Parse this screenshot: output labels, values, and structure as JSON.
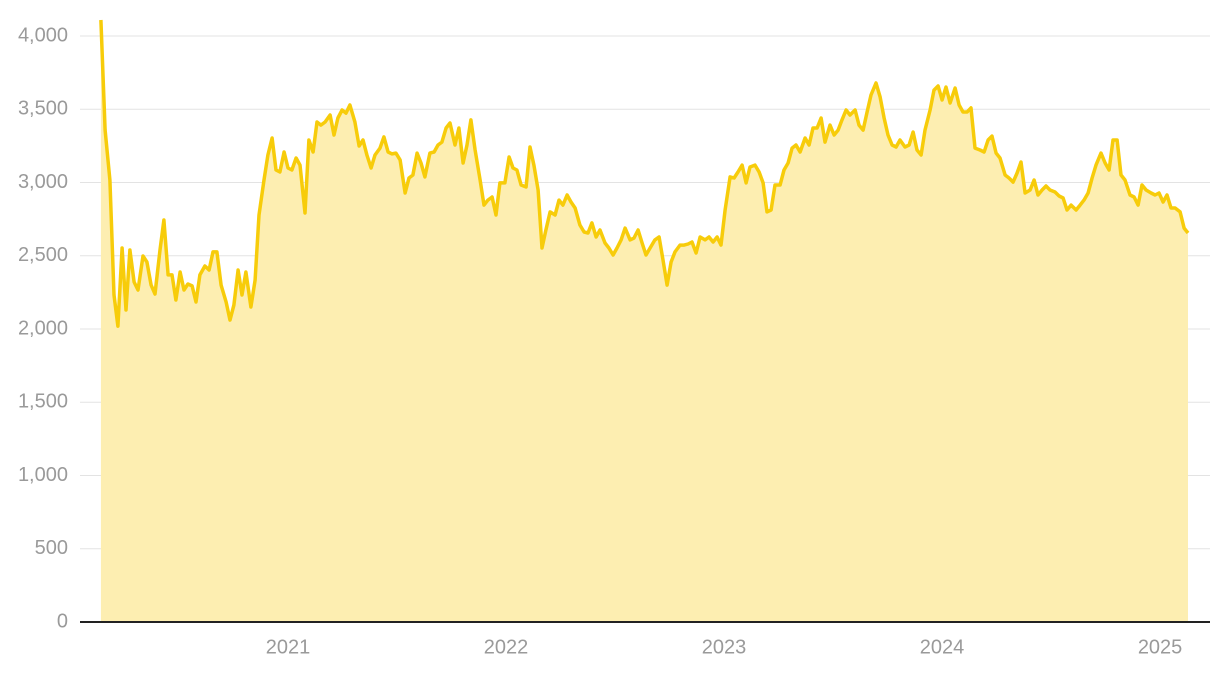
{
  "chart_data": {
    "type": "area",
    "x": [
      2020.142,
      2020.161,
      2020.183,
      2020.202,
      2020.22,
      2020.239,
      2020.257,
      2020.275,
      2020.294,
      2020.312,
      2020.335,
      2020.353,
      2020.372,
      2020.39,
      2020.413,
      2020.431,
      2020.45,
      2020.468,
      2020.486,
      2020.505,
      2020.523,
      2020.541,
      2020.56,
      2020.578,
      2020.596,
      2020.619,
      2020.638,
      2020.656,
      2020.674,
      2020.693,
      2020.716,
      2020.734,
      2020.752,
      2020.771,
      2020.789,
      2020.807,
      2020.83,
      2020.849,
      2020.867,
      2020.89,
      2020.908,
      2020.927,
      2020.945,
      2020.963,
      2020.982,
      2021.0,
      2021.018,
      2021.037,
      2021.055,
      2021.078,
      2021.096,
      2021.115,
      2021.133,
      2021.151,
      2021.17,
      2021.193,
      2021.211,
      2021.229,
      2021.248,
      2021.266,
      2021.284,
      2021.307,
      2021.326,
      2021.344,
      2021.362,
      2021.381,
      2021.399,
      2021.422,
      2021.44,
      2021.459,
      2021.477,
      2021.495,
      2021.514,
      2021.537,
      2021.555,
      2021.573,
      2021.592,
      2021.61,
      2021.628,
      2021.651,
      2021.67,
      2021.688,
      2021.706,
      2021.725,
      2021.743,
      2021.766,
      2021.784,
      2021.803,
      2021.821,
      2021.839,
      2021.858,
      2021.881,
      2021.899,
      2021.917,
      2021.936,
      2021.954,
      2021.972,
      2021.995,
      2022.014,
      2022.032,
      2022.05,
      2022.069,
      2022.092,
      2022.11,
      2022.128,
      2022.147,
      2022.165,
      2022.183,
      2022.202,
      2022.225,
      2022.243,
      2022.261,
      2022.28,
      2022.298,
      2022.317,
      2022.339,
      2022.358,
      2022.376,
      2022.394,
      2022.413,
      2022.431,
      2022.454,
      2022.472,
      2022.491,
      2022.509,
      2022.528,
      2022.546,
      2022.569,
      2022.587,
      2022.606,
      2022.624,
      2022.642,
      2022.661,
      2022.683,
      2022.702,
      2022.72,
      2022.739,
      2022.757,
      2022.775,
      2022.798,
      2022.817,
      2022.835,
      2022.853,
      2022.872,
      2022.89,
      2022.913,
      2022.931,
      2022.95,
      2022.968,
      2022.986,
      2023.005,
      2023.028,
      2023.046,
      2023.064,
      2023.083,
      2023.101,
      2023.119,
      2023.142,
      2023.161,
      2023.179,
      2023.197,
      2023.216,
      2023.234,
      2023.257,
      2023.275,
      2023.294,
      2023.312,
      2023.33,
      2023.349,
      2023.372,
      2023.39,
      2023.408,
      2023.427,
      2023.445,
      2023.463,
      2023.486,
      2023.505,
      2023.523,
      2023.541,
      2023.56,
      2023.578,
      2023.601,
      2023.619,
      2023.638,
      2023.656,
      2023.674,
      2023.697,
      2023.716,
      2023.734,
      2023.752,
      2023.771,
      2023.789,
      2023.807,
      2023.83,
      2023.849,
      2023.867,
      2023.885,
      2023.904,
      2023.922,
      2023.945,
      2023.963,
      2023.982,
      2024.0,
      2024.018,
      2024.037,
      2024.06,
      2024.078,
      2024.096,
      2024.115,
      2024.133,
      2024.151,
      2024.174,
      2024.193,
      2024.211,
      2024.229,
      2024.248,
      2024.266,
      2024.289,
      2024.307,
      2024.326,
      2024.344,
      2024.362,
      2024.381,
      2024.404,
      2024.422,
      2024.44,
      2024.459,
      2024.477,
      2024.495,
      2024.518,
      2024.537,
      2024.555,
      2024.573,
      2024.592,
      2024.615,
      2024.633,
      2024.651,
      2024.67,
      2024.688,
      2024.706,
      2024.729,
      2024.748,
      2024.766,
      2024.784,
      2024.803,
      2024.821,
      2024.839,
      2024.862,
      2024.881,
      2024.899,
      2024.917,
      2024.936,
      2024.959,
      2024.977,
      2024.995,
      2025.014,
      2025.032,
      2025.05,
      2025.069,
      2025.092,
      2025.11,
      2025.128
    ],
    "values": [
      4109,
      3358,
      3017,
      2232,
      2020,
      2553,
      2130,
      2539,
      2321,
      2266,
      2498,
      2457,
      2300,
      2239,
      2539,
      2744,
      2369,
      2369,
      2198,
      2389,
      2266,
      2307,
      2294,
      2184,
      2369,
      2430,
      2403,
      2526,
      2526,
      2300,
      2184,
      2061,
      2164,
      2403,
      2232,
      2389,
      2150,
      2334,
      2778,
      3017,
      3188,
      3304,
      3085,
      3072,
      3208,
      3099,
      3085,
      3167,
      3119,
      2792,
      3290,
      3208,
      3413,
      3392,
      3413,
      3461,
      3324,
      3440,
      3495,
      3474,
      3529,
      3413,
      3249,
      3290,
      3188,
      3099,
      3188,
      3235,
      3311,
      3208,
      3195,
      3201,
      3154,
      2928,
      3031,
      3051,
      3201,
      3133,
      3038,
      3201,
      3208,
      3256,
      3276,
      3372,
      3406,
      3256,
      3372,
      3133,
      3256,
      3427,
      3222,
      3017,
      2846,
      2880,
      2901,
      2778,
      2997,
      2997,
      3174,
      3099,
      3085,
      2983,
      2969,
      3242,
      3119,
      2949,
      2553,
      2676,
      2799,
      2778,
      2880,
      2846,
      2915,
      2867,
      2826,
      2710,
      2662,
      2655,
      2724,
      2628,
      2676,
      2587,
      2553,
      2505,
      2553,
      2608,
      2689,
      2608,
      2621,
      2676,
      2587,
      2505,
      2553,
      2608,
      2628,
      2471,
      2300,
      2457,
      2526,
      2573,
      2573,
      2580,
      2594,
      2519,
      2628,
      2608,
      2628,
      2594,
      2628,
      2573,
      2812,
      3038,
      3031,
      3072,
      3119,
      2997,
      3106,
      3119,
      3072,
      2997,
      2799,
      2812,
      2983,
      2983,
      3085,
      3133,
      3235,
      3256,
      3208,
      3304,
      3256,
      3372,
      3372,
      3440,
      3276,
      3392,
      3324,
      3358,
      3427,
      3495,
      3461,
      3495,
      3392,
      3358,
      3481,
      3597,
      3679,
      3584,
      3440,
      3324,
      3256,
      3242,
      3290,
      3242,
      3256,
      3345,
      3222,
      3188,
      3358,
      3495,
      3631,
      3659,
      3563,
      3652,
      3543,
      3645,
      3529,
      3481,
      3481,
      3509,
      3235,
      3222,
      3208,
      3290,
      3317,
      3201,
      3167,
      3051,
      3031,
      3003,
      3065,
      3140,
      2928,
      2949,
      3017,
      2915,
      2949,
      2976,
      2949,
      2935,
      2908,
      2894,
      2812,
      2846,
      2812,
      2846,
      2880,
      2928,
      3031,
      3119,
      3201,
      3133,
      3085,
      3290,
      3290,
      3051,
      3017,
      2915,
      2901,
      2846,
      2983,
      2949,
      2928,
      2915,
      2928,
      2867,
      2915,
      2826,
      2826,
      2799,
      2689,
      2655
    ],
    "line_color": "#f7cc0a",
    "fill_color": "#fdeeb1",
    "xlim": [
      2020.046,
      2025.229
    ],
    "xticks": [
      2021,
      2022,
      2023,
      2024,
      2025
    ],
    "ylim": [
      0,
      4000
    ],
    "yticks": [
      0,
      {
        "value": 500,
        "label": "500"
      },
      {
        "value": 1000,
        "label": "1,000"
      },
      {
        "value": 1500,
        "label": "1,500"
      },
      {
        "value": 2000,
        "label": "2,000"
      },
      {
        "value": 2500,
        "label": "2,500"
      },
      {
        "value": 3000,
        "label": "3,000"
      },
      {
        "value": 3500,
        "label": "3,500"
      },
      {
        "value": 4000,
        "label": "4,000"
      }
    ],
    "grid": true
  }
}
